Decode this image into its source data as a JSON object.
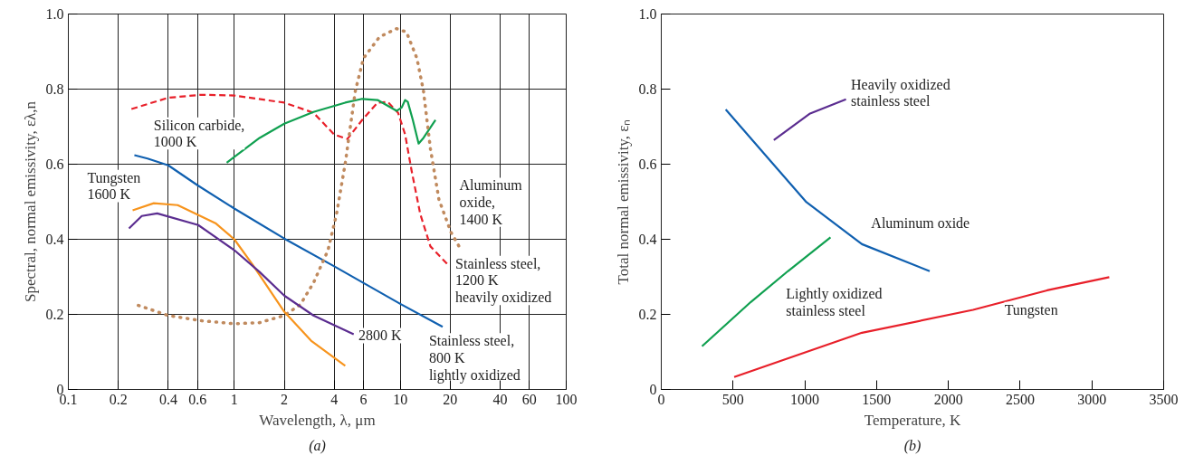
{
  "chart_data": [
    {
      "type": "line",
      "xlabel": "Wavelength, λ, μm",
      "ylabel": "Spectral, normal emissivity, ελ,n",
      "log": "x",
      "grid": true,
      "marker": "none",
      "xlim": [
        0.1,
        100
      ],
      "xticks": [
        0.1,
        0.2,
        0.4,
        0.6,
        1,
        2,
        4,
        6,
        10,
        20,
        40,
        60,
        100
      ],
      "ylim": [
        0,
        1
      ],
      "yticks": [
        0,
        0.2,
        0.4,
        0.6,
        0.8,
        {
          "value": 1,
          "label": "1.0"
        }
      ],
      "series": [
        {
          "name": "Stainless steel,\n800 K\nlightly oxidized",
          "color": "#1060b0",
          "line_style": "solid",
          "x": [
            0.25,
            0.3,
            0.4,
            0.6,
            1,
            2,
            4,
            10,
            18
          ],
          "values": [
            0.624,
            0.615,
            0.597,
            0.544,
            0.482,
            0.402,
            0.328,
            0.228,
            0.167
          ]
        },
        {
          "name": "Stainless steel,\n1200 K\nheavily oxidized",
          "color": "#e8202a",
          "line_style": "dashed",
          "x": [
            0.24,
            0.4,
            0.635,
            1,
            2,
            3,
            4,
            4.8,
            5.9,
            7.3,
            8.4,
            9.7,
            10.7,
            11.7,
            13.2,
            15.2,
            19.8
          ],
          "values": [
            0.747,
            0.777,
            0.785,
            0.783,
            0.764,
            0.737,
            0.679,
            0.667,
            0.718,
            0.764,
            0.766,
            0.737,
            0.679,
            0.583,
            0.467,
            0.381,
            0.328
          ]
        },
        {
          "name": "Silicon carbide,\n1000 K",
          "color": "#10a050",
          "line_style": "solid",
          "x": [
            0.9,
            1.42,
            2,
            3,
            4.66,
            5.9,
            7.3,
            9.5,
            10.2,
            10.7,
            11.1,
            11.9,
            12.9,
            13.8,
            16.3
          ],
          "values": [
            0.604,
            0.67,
            0.708,
            0.739,
            0.764,
            0.774,
            0.771,
            0.742,
            0.751,
            0.771,
            0.766,
            0.718,
            0.655,
            0.67,
            0.718
          ]
        },
        {
          "name": "Aluminum\noxide,\n1400 K",
          "color": "#c08a5e",
          "line_style": "dotted",
          "x": [
            0.264,
            0.4,
            0.635,
            1,
            1.42,
            2,
            2.5,
            3,
            3.67,
            4.13,
            4.66,
            5.36,
            6,
            7.5,
            9.5,
            10.9,
            12.6,
            13.8,
            15.2,
            17.1,
            20.2,
            23.3
          ],
          "values": [
            0.224,
            0.197,
            0.183,
            0.175,
            0.178,
            0.197,
            0.226,
            0.284,
            0.371,
            0.467,
            0.602,
            0.795,
            0.882,
            0.939,
            0.961,
            0.952,
            0.882,
            0.795,
            0.641,
            0.506,
            0.419,
            0.371
          ]
        },
        {
          "name": "Tungsten\n1600 K",
          "color": "#f7941d",
          "line_style": "solid",
          "x": [
            0.244,
            0.327,
            0.456,
            0.77,
            1,
            1.29,
            2,
            2.9,
            4.66
          ],
          "values": [
            0.477,
            0.496,
            0.491,
            0.443,
            0.4,
            0.332,
            0.207,
            0.13,
            0.063
          ]
        },
        {
          "name": "2800 K",
          "color": "#5b2d90",
          "line_style": "solid",
          "x": [
            0.232,
            0.277,
            0.343,
            0.606,
            1,
            1.42,
            2,
            3,
            5.24
          ],
          "values": [
            0.429,
            0.462,
            0.469,
            0.438,
            0.371,
            0.313,
            0.25,
            0.197,
            0.147
          ]
        }
      ],
      "annotations": [
        "(a)"
      ]
    },
    {
      "type": "line",
      "xlabel": "Temperature, K",
      "ylabel": "Total normal emissivity, εₙ",
      "grid": false,
      "marker": "none",
      "xlim": [
        0,
        3500
      ],
      "xticks": [
        0,
        500,
        1000,
        1500,
        2000,
        2500,
        3000,
        3500
      ],
      "ylim": [
        0,
        1
      ],
      "yticks": [
        0,
        0.2,
        0.4,
        0.6,
        0.8,
        {
          "value": 1,
          "label": "1.0"
        }
      ],
      "series": [
        {
          "name": "Aluminum oxide",
          "color": "#1060b0",
          "line_style": "solid",
          "x": [
            449,
            753,
            1011,
            1398,
            1870
          ],
          "values": [
            0.746,
            0.612,
            0.499,
            0.387,
            0.315
          ]
        },
        {
          "name": "Heavily oxidized\nstainless steel",
          "color": "#5b2d90",
          "line_style": "solid",
          "x": [
            784,
            1037,
            1287
          ],
          "values": [
            0.664,
            0.735,
            0.773
          ]
        },
        {
          "name": "Lightly oxidized\nstainless steel",
          "color": "#10a050",
          "line_style": "solid",
          "x": [
            284,
            624,
            882,
            1179
          ],
          "values": [
            0.115,
            0.233,
            0.315,
            0.405
          ]
        },
        {
          "name": "Tungsten",
          "color": "#e8202a",
          "line_style": "solid",
          "x": [
            508,
            1398,
            2172,
            2688,
            3121
          ],
          "values": [
            0.033,
            0.151,
            0.212,
            0.264,
            0.299
          ]
        }
      ],
      "annotations": [
        "(b)"
      ]
    }
  ]
}
